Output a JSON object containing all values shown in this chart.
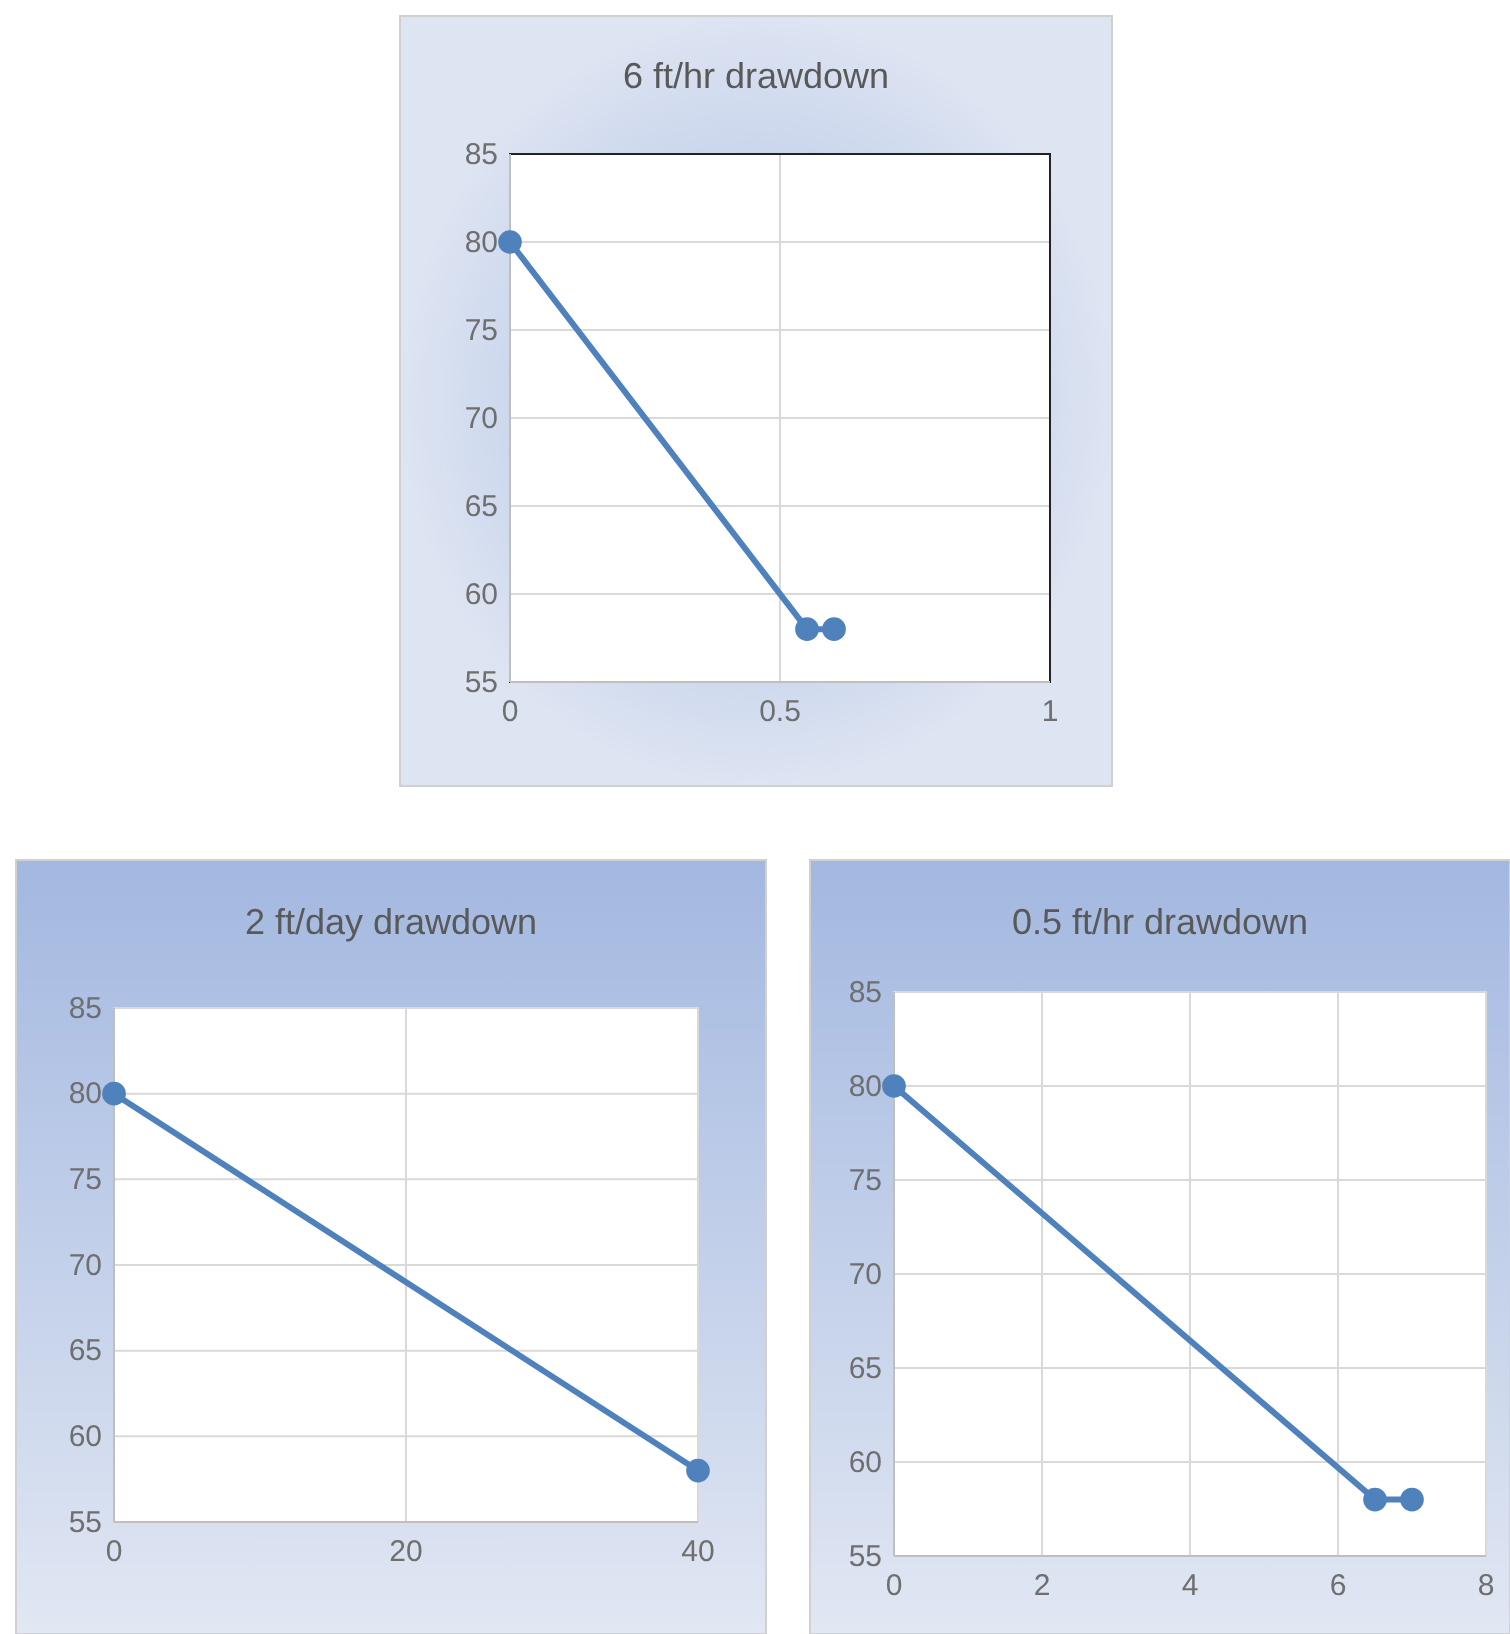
{
  "chart_data": [
    {
      "type": "line",
      "title": "6 ft/hr drawdown",
      "x": [
        0,
        0.55,
        0.6
      ],
      "series": [
        {
          "color": "#4f81bd",
          "values": [
            80,
            58,
            58
          ]
        }
      ],
      "xlim": [
        0,
        1
      ],
      "xticks": [
        0,
        0.5,
        1
      ],
      "ylim": [
        55,
        85
      ],
      "yticks": [
        55,
        60,
        65,
        70,
        75,
        80,
        85
      ],
      "grid": true,
      "marker": "circle"
    },
    {
      "type": "line",
      "title": "2 ft/day drawdown",
      "x": [
        0,
        40
      ],
      "series": [
        {
          "color": "#4f81bd",
          "values": [
            80,
            58
          ]
        }
      ],
      "xlim": [
        0,
        40
      ],
      "xticks": [
        0,
        20,
        40
      ],
      "ylim": [
        55,
        85
      ],
      "yticks": [
        55,
        60,
        65,
        70,
        75,
        80,
        85
      ],
      "grid": true,
      "marker": "circle"
    },
    {
      "type": "line",
      "title": "0.5 ft/hr drawdown",
      "x": [
        0,
        6.5,
        7
      ],
      "series": [
        {
          "color": "#4f81bd",
          "values": [
            80,
            58,
            58
          ]
        }
      ],
      "xlim": [
        0,
        8
      ],
      "xticks": [
        0,
        2,
        4,
        6,
        8
      ],
      "ylim": [
        55,
        85
      ],
      "yticks": [
        55,
        60,
        65,
        70,
        75,
        80,
        85
      ],
      "grid": true,
      "marker": "circle"
    }
  ]
}
